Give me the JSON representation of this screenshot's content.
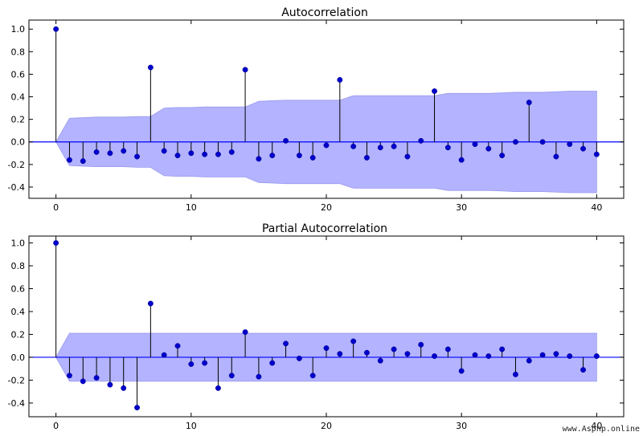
{
  "chart_data": [
    {
      "type": "stem",
      "title": "Autocorrelation",
      "xlabel": "",
      "ylabel": "",
      "xlim": [
        -2,
        42
      ],
      "ylim": [
        -0.5,
        1.08
      ],
      "xticks": [
        0,
        10,
        20,
        30,
        40
      ],
      "yticks": [
        -0.4,
        -0.2,
        0.0,
        0.2,
        0.4,
        0.6,
        0.8,
        1.0
      ],
      "x": [
        0,
        1,
        2,
        3,
        4,
        5,
        6,
        7,
        8,
        9,
        10,
        11,
        12,
        13,
        14,
        15,
        16,
        17,
        18,
        19,
        20,
        21,
        22,
        23,
        24,
        25,
        26,
        27,
        28,
        29,
        30,
        31,
        32,
        33,
        34,
        35,
        36,
        37,
        38,
        39,
        40
      ],
      "values": [
        1.0,
        -0.16,
        -0.17,
        -0.09,
        -0.1,
        -0.08,
        -0.13,
        0.66,
        -0.08,
        -0.12,
        -0.1,
        -0.11,
        -0.11,
        -0.09,
        0.64,
        -0.15,
        -0.12,
        0.01,
        -0.12,
        -0.14,
        -0.03,
        0.55,
        -0.04,
        -0.14,
        -0.05,
        -0.04,
        -0.13,
        0.01,
        0.45,
        -0.05,
        -0.16,
        -0.02,
        -0.06,
        -0.12,
        0.0,
        0.35,
        0.0,
        -0.13,
        -0.02,
        -0.06,
        -0.11
      ],
      "confint_upper": [
        0.0,
        0.21,
        0.215,
        0.22,
        0.22,
        0.22,
        0.225,
        0.225,
        0.3,
        0.305,
        0.305,
        0.31,
        0.31,
        0.31,
        0.31,
        0.36,
        0.365,
        0.37,
        0.37,
        0.37,
        0.37,
        0.37,
        0.41,
        0.41,
        0.41,
        0.41,
        0.41,
        0.41,
        0.41,
        0.43,
        0.43,
        0.43,
        0.43,
        0.435,
        0.44,
        0.44,
        0.44,
        0.445,
        0.45,
        0.45,
        0.45
      ],
      "colors": {
        "marker": "#0000cc",
        "stem": "#000000",
        "baseline": "#0000ff",
        "band": "#b3b3ff"
      }
    },
    {
      "type": "stem",
      "title": "Partial Autocorrelation",
      "xlabel": "",
      "ylabel": "",
      "xlim": [
        -2,
        42
      ],
      "ylim": [
        -0.52,
        1.06
      ],
      "xticks": [
        0,
        10,
        20,
        30,
        40
      ],
      "yticks": [
        -0.4,
        -0.2,
        0.0,
        0.2,
        0.4,
        0.6,
        0.8,
        1.0
      ],
      "x": [
        0,
        1,
        2,
        3,
        4,
        5,
        6,
        7,
        8,
        9,
        10,
        11,
        12,
        13,
        14,
        15,
        16,
        17,
        18,
        19,
        20,
        21,
        22,
        23,
        24,
        25,
        26,
        27,
        28,
        29,
        30,
        31,
        32,
        33,
        34,
        35,
        36,
        37,
        38,
        39,
        40
      ],
      "values": [
        1.0,
        -0.16,
        -0.21,
        -0.18,
        -0.24,
        -0.27,
        -0.44,
        0.47,
        0.02,
        0.1,
        -0.06,
        -0.05,
        -0.27,
        -0.16,
        0.22,
        -0.17,
        -0.05,
        0.12,
        -0.01,
        -0.16,
        0.08,
        0.03,
        0.14,
        0.04,
        -0.03,
        0.07,
        0.03,
        0.11,
        0.01,
        0.07,
        -0.12,
        0.02,
        0.01,
        0.07,
        -0.15,
        -0.03,
        0.02,
        0.03,
        0.01,
        -0.11,
        0.01
      ],
      "confint_upper": [
        0.0,
        0.21,
        0.21,
        0.21,
        0.21,
        0.21,
        0.21,
        0.21,
        0.21,
        0.21,
        0.21,
        0.21,
        0.21,
        0.21,
        0.21,
        0.21,
        0.21,
        0.21,
        0.21,
        0.21,
        0.21,
        0.21,
        0.21,
        0.21,
        0.21,
        0.21,
        0.21,
        0.21,
        0.21,
        0.21,
        0.21,
        0.21,
        0.21,
        0.21,
        0.21,
        0.21,
        0.21,
        0.21,
        0.21,
        0.21,
        0.21
      ],
      "colors": {
        "marker": "#0000cc",
        "stem": "#000000",
        "baseline": "#0000ff",
        "band": "#b3b3ff"
      }
    }
  ],
  "watermark": "www.Asphp.online"
}
